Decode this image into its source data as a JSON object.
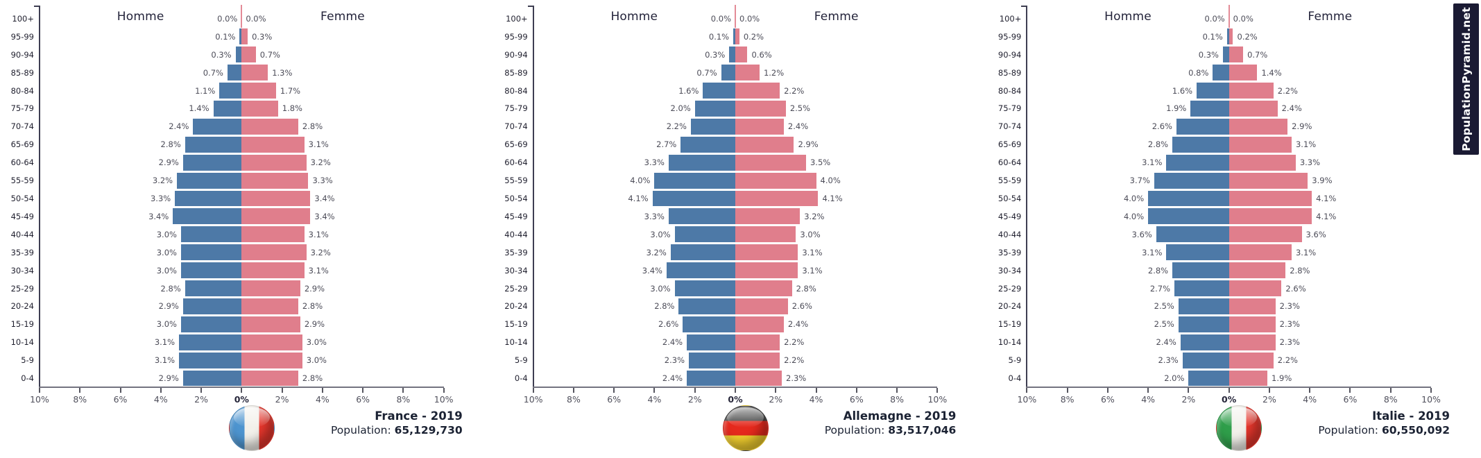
{
  "page": {
    "background": "#ffffff"
  },
  "labels": {
    "male_header": "Homme",
    "female_header": "Femme",
    "population_prefix": "Population:"
  },
  "colors": {
    "male_bar": "#4d79a7",
    "female_bar": "#e07e8c",
    "axis": "#73737f",
    "value_label": "#4c4c58",
    "caption_text": "#1b2233"
  },
  "watermark": {
    "text": "PopulationPyramid.net",
    "bg": "#1a1a33",
    "fg": "#ffffff"
  },
  "x_ticks": [
    "10%",
    "8%",
    "6%",
    "4%",
    "2%",
    "0%",
    "2%",
    "4%",
    "6%",
    "8%",
    "10%"
  ],
  "chart_data": [
    {
      "type": "bar",
      "variant": "population_pyramid",
      "id": "france",
      "title": "France - 2019",
      "population": "65,129,730",
      "left_series": "Homme",
      "right_series": "Femme",
      "units": "%",
      "xlim": [
        -10,
        10
      ],
      "categories": [
        "100+",
        "95-99",
        "90-94",
        "85-89",
        "80-84",
        "75-79",
        "70-74",
        "65-69",
        "60-64",
        "55-59",
        "50-54",
        "45-49",
        "40-44",
        "35-39",
        "30-34",
        "25-29",
        "20-24",
        "15-19",
        "10-14",
        "5-9",
        "0-4"
      ],
      "series": [
        {
          "name": "Homme",
          "values": [
            0.0,
            0.1,
            0.3,
            0.7,
            1.1,
            1.4,
            2.4,
            2.8,
            2.9,
            3.2,
            3.3,
            3.4,
            3.0,
            3.0,
            3.0,
            2.8,
            2.9,
            3.0,
            3.1,
            3.1,
            2.9
          ]
        },
        {
          "name": "Femme",
          "values": [
            0.0,
            0.3,
            0.7,
            1.3,
            1.7,
            1.8,
            2.8,
            3.1,
            3.2,
            3.3,
            3.4,
            3.4,
            3.1,
            3.2,
            3.1,
            2.9,
            2.8,
            2.9,
            3.0,
            3.0,
            2.8
          ]
        }
      ],
      "flag": {
        "name": "france-flag",
        "orientation": "vertical",
        "colors": [
          "#4d94cf",
          "#f2f0ea",
          "#e8372d"
        ]
      }
    },
    {
      "type": "bar",
      "variant": "population_pyramid",
      "id": "allemagne",
      "title": "Allemagne - 2019",
      "population": "83,517,046",
      "left_series": "Homme",
      "right_series": "Femme",
      "units": "%",
      "xlim": [
        -10,
        10
      ],
      "categories": [
        "100+",
        "95-99",
        "90-94",
        "85-89",
        "80-84",
        "75-79",
        "70-74",
        "65-69",
        "60-64",
        "55-59",
        "50-54",
        "45-49",
        "40-44",
        "35-39",
        "30-34",
        "25-29",
        "20-24",
        "15-19",
        "10-14",
        "5-9",
        "0-4"
      ],
      "series": [
        {
          "name": "Homme",
          "values": [
            0.0,
            0.1,
            0.3,
            0.7,
            1.6,
            2.0,
            2.2,
            2.7,
            3.3,
            4.0,
            4.1,
            3.3,
            3.0,
            3.2,
            3.4,
            3.0,
            2.8,
            2.6,
            2.4,
            2.3,
            2.4
          ]
        },
        {
          "name": "Femme",
          "values": [
            0.0,
            0.2,
            0.6,
            1.2,
            2.2,
            2.5,
            2.4,
            2.9,
            3.5,
            4.0,
            4.1,
            3.2,
            3.0,
            3.1,
            3.1,
            2.8,
            2.6,
            2.4,
            2.2,
            2.2,
            2.3
          ]
        }
      ],
      "flag": {
        "name": "germany-flag",
        "orientation": "horizontal",
        "colors": [
          "#3a3a3a",
          "#e5291d",
          "#f1ce2e"
        ]
      }
    },
    {
      "type": "bar",
      "variant": "population_pyramid",
      "id": "italie",
      "title": "Italie - 2019",
      "population": "60,550,092",
      "left_series": "Homme",
      "right_series": "Femme",
      "units": "%",
      "xlim": [
        -10,
        10
      ],
      "categories": [
        "100+",
        "95-99",
        "90-94",
        "85-89",
        "80-84",
        "75-79",
        "70-74",
        "65-69",
        "60-64",
        "55-59",
        "50-54",
        "45-49",
        "40-44",
        "35-39",
        "30-34",
        "25-29",
        "20-24",
        "15-19",
        "10-14",
        "5-9",
        "0-4"
      ],
      "series": [
        {
          "name": "Homme",
          "values": [
            0.0,
            0.1,
            0.3,
            0.8,
            1.6,
            1.9,
            2.6,
            2.8,
            3.1,
            3.7,
            4.0,
            4.0,
            3.6,
            3.1,
            2.8,
            2.7,
            2.5,
            2.5,
            2.4,
            2.3,
            2.0
          ]
        },
        {
          "name": "Femme",
          "values": [
            0.0,
            0.2,
            0.7,
            1.4,
            2.2,
            2.4,
            2.9,
            3.1,
            3.3,
            3.9,
            4.1,
            4.1,
            3.6,
            3.1,
            2.8,
            2.6,
            2.3,
            2.3,
            2.3,
            2.2,
            1.9
          ]
        }
      ],
      "flag": {
        "name": "italy-flag",
        "orientation": "vertical",
        "colors": [
          "#2f9e4a",
          "#f2f0ea",
          "#e8372d"
        ]
      }
    }
  ]
}
